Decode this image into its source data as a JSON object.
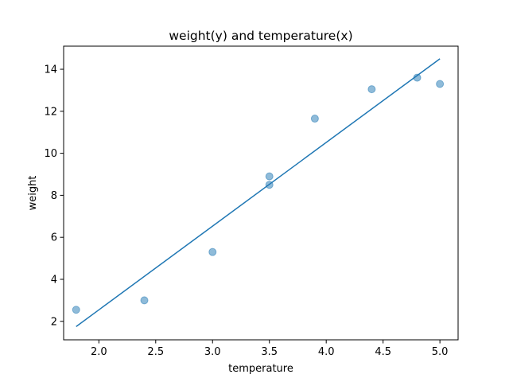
{
  "chart_data": {
    "type": "scatter",
    "title": "weight(y) and temperature(x)",
    "xlabel": "temperature",
    "ylabel": "weight",
    "xlim": [
      1.69,
      5.16
    ],
    "ylim": [
      1.12,
      15.1
    ],
    "xticks": [
      2.0,
      2.5,
      3.0,
      3.5,
      4.0,
      4.5,
      5.0
    ],
    "xtick_labels": [
      "2.0",
      "2.5",
      "3.0",
      "3.5",
      "4.0",
      "4.5",
      "5.0"
    ],
    "yticks": [
      2,
      4,
      6,
      8,
      10,
      12,
      14
    ],
    "ytick_labels": [
      "2",
      "4",
      "6",
      "8",
      "10",
      "12",
      "14"
    ],
    "grid": false,
    "points": [
      {
        "x": 1.8,
        "y": 2.55
      },
      {
        "x": 2.4,
        "y": 3.0
      },
      {
        "x": 3.0,
        "y": 5.3
      },
      {
        "x": 3.5,
        "y": 8.9
      },
      {
        "x": 3.5,
        "y": 8.5
      },
      {
        "x": 3.9,
        "y": 11.65
      },
      {
        "x": 4.4,
        "y": 13.05
      },
      {
        "x": 4.8,
        "y": 13.6
      },
      {
        "x": 5.0,
        "y": 13.3
      }
    ],
    "fit_line": [
      {
        "x": 1.8,
        "y": 1.75
      },
      {
        "x": 5.0,
        "y": 14.5
      }
    ],
    "colors": {
      "points": "#1f77b4",
      "line": "#1f77b4"
    }
  }
}
